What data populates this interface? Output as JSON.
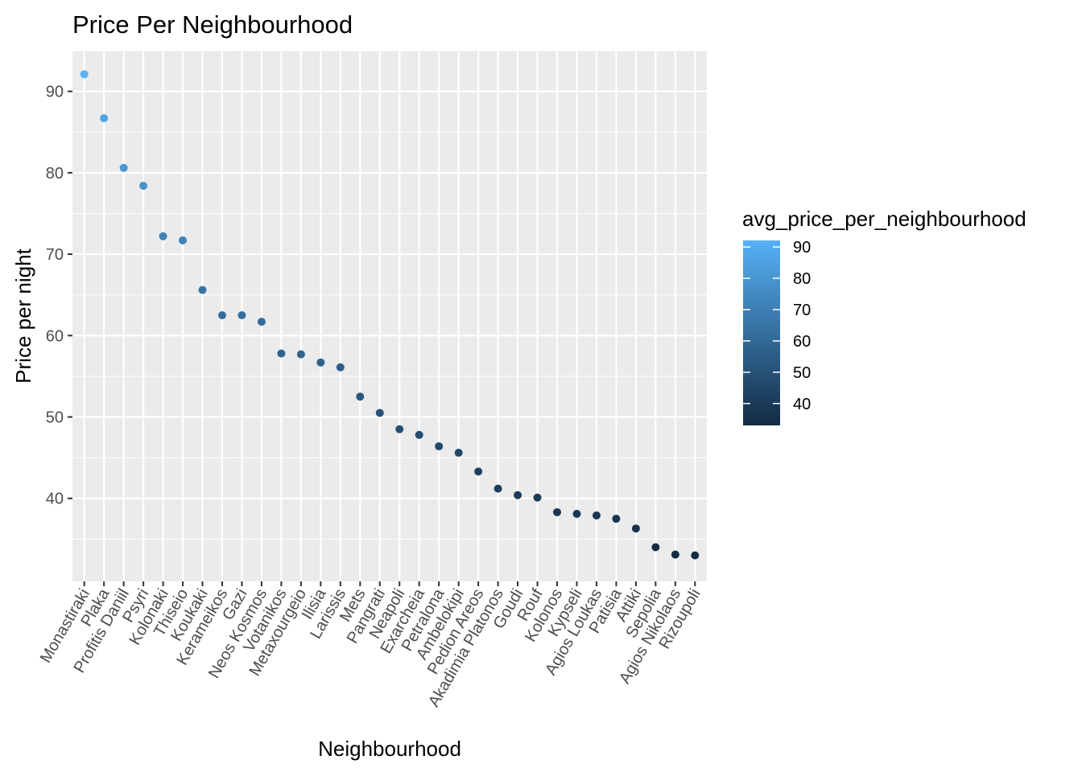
{
  "chart_data": {
    "type": "scatter",
    "title": "Price Per Neighbourhood",
    "xlabel": "Neighbourhood",
    "ylabel": "Price per night",
    "ylim": [
      29.8,
      95
    ],
    "yticks": [
      40,
      50,
      60,
      70,
      80,
      90
    ],
    "grid": true,
    "legend": {
      "title": "avg_price_per_neighbourhood",
      "placement": "right",
      "type": "colorbar",
      "range": [
        33,
        92.1
      ],
      "ticks": [
        40,
        50,
        60,
        70,
        80,
        90
      ],
      "low_color": "#132b43",
      "high_color": "#56b1f7"
    },
    "categories": [
      "Monastiraki",
      "Plaka",
      "Profitis Daniil",
      "Psyri",
      "Kolonaki",
      "Thiseio",
      "Koukaki",
      "Kerameikos",
      "Gazi",
      "Neos Kosmos",
      "Votanikos",
      "Metaxourgeio",
      "Ilisia",
      "Larissis",
      "Mets",
      "Pangrati",
      "Neapoli",
      "Exarcheia",
      "Petralona",
      "Ambelokipi",
      "Pedion Areos",
      "Akadimia Platonos",
      "Goudi",
      "Rouf",
      "Kolonos",
      "Kypseli",
      "Agios Loukas",
      "Patisia",
      "Attiki",
      "Sepolia",
      "Agios Nikolaos",
      "Rizoupoli"
    ],
    "values": [
      92.1,
      86.7,
      80.6,
      78.4,
      72.2,
      71.7,
      65.6,
      62.5,
      62.5,
      61.7,
      57.8,
      57.7,
      56.7,
      56.1,
      52.5,
      50.5,
      48.5,
      47.8,
      46.4,
      45.6,
      43.3,
      41.2,
      40.4,
      40.1,
      38.3,
      38.1,
      37.9,
      37.5,
      36.3,
      34.0,
      33.1,
      33.0
    ]
  }
}
